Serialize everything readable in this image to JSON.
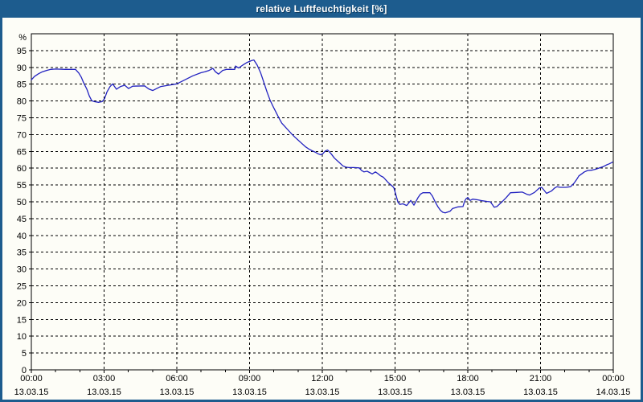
{
  "window": {
    "title": "relative Luftfeuchtigkeit [%]",
    "title_bar_color": "#1d5c8e",
    "frame_color": "#1d5c8e",
    "content_background": "#fdfdf7"
  },
  "chart_data": {
    "type": "line",
    "title": "relative Luftfeuchtigkeit [%]",
    "ylabel": "%",
    "unit_label": "%",
    "ylim": [
      0,
      100
    ],
    "ytick_step": 5,
    "yticks": [
      0,
      5,
      10,
      15,
      20,
      25,
      30,
      35,
      40,
      45,
      50,
      55,
      60,
      65,
      70,
      75,
      80,
      85,
      90,
      95
    ],
    "xlim_hours": [
      0,
      24
    ],
    "minor_tick_every_hours": 1,
    "grid": "dashed",
    "legend": "none",
    "colors": {
      "line": "#2222c0",
      "grid": "#000000",
      "axis": "#000000",
      "text": "#000000"
    },
    "xticks": [
      {
        "hours": 0,
        "time": "00:00",
        "date": "13.03.15"
      },
      {
        "hours": 3,
        "time": "03:00",
        "date": "13.03.15"
      },
      {
        "hours": 6,
        "time": "06:00",
        "date": "13.03.15"
      },
      {
        "hours": 9,
        "time": "09:00",
        "date": "13.03.15"
      },
      {
        "hours": 12,
        "time": "12:00",
        "date": "13.03.15"
      },
      {
        "hours": 15,
        "time": "15:00",
        "date": "13.03.15"
      },
      {
        "hours": 18,
        "time": "18:00",
        "date": "13.03.15"
      },
      {
        "hours": 21,
        "time": "21:00",
        "date": "13.03.15"
      },
      {
        "hours": 24,
        "time": "00:00",
        "date": "14.03.15"
      }
    ],
    "points": [
      [
        0.0,
        86.3
      ],
      [
        0.13,
        87.3
      ],
      [
        0.3,
        88.1
      ],
      [
        0.46,
        88.7
      ],
      [
        0.63,
        89.1
      ],
      [
        0.8,
        89.4
      ],
      [
        1.0,
        89.5
      ],
      [
        1.4,
        89.4
      ],
      [
        1.82,
        89.4
      ],
      [
        1.96,
        88.3
      ],
      [
        2.06,
        87.1
      ],
      [
        2.15,
        85.5
      ],
      [
        2.29,
        83.5
      ],
      [
        2.39,
        81.5
      ],
      [
        2.49,
        80.1
      ],
      [
        2.59,
        79.8
      ],
      [
        2.78,
        79.6
      ],
      [
        2.92,
        79.8
      ],
      [
        3.02,
        80.7
      ],
      [
        3.12,
        82.7
      ],
      [
        3.25,
        84.3
      ],
      [
        3.35,
        85.1
      ],
      [
        3.51,
        83.5
      ],
      [
        3.68,
        84.3
      ],
      [
        3.85,
        84.7
      ],
      [
        4.01,
        83.7
      ],
      [
        4.18,
        84.4
      ],
      [
        4.67,
        84.5
      ],
      [
        4.84,
        83.6
      ],
      [
        5.01,
        83.1
      ],
      [
        5.17,
        83.7
      ],
      [
        5.34,
        84.3
      ],
      [
        5.67,
        84.7
      ],
      [
        6.0,
        85.1
      ],
      [
        6.33,
        86.3
      ],
      [
        6.66,
        87.5
      ],
      [
        6.99,
        88.4
      ],
      [
        7.16,
        88.7
      ],
      [
        7.33,
        89.1
      ],
      [
        7.49,
        89.7
      ],
      [
        7.59,
        88.7
      ],
      [
        7.72,
        88.0
      ],
      [
        7.89,
        89.1
      ],
      [
        8.06,
        89.4
      ],
      [
        8.39,
        89.4
      ],
      [
        8.42,
        90.4
      ],
      [
        8.55,
        89.8
      ],
      [
        8.72,
        90.7
      ],
      [
        8.88,
        91.4
      ],
      [
        9.08,
        92.0
      ],
      [
        9.18,
        92.2
      ],
      [
        9.31,
        90.7
      ],
      [
        9.45,
        88.5
      ],
      [
        9.6,
        85.3
      ],
      [
        9.72,
        82.7
      ],
      [
        9.85,
        80.2
      ],
      [
        9.98,
        78.2
      ],
      [
        10.1,
        76.5
      ],
      [
        10.22,
        74.8
      ],
      [
        10.33,
        73.4
      ],
      [
        10.46,
        72.4
      ],
      [
        10.58,
        71.4
      ],
      [
        10.72,
        70.3
      ],
      [
        10.86,
        69.3
      ],
      [
        11.0,
        68.4
      ],
      [
        11.15,
        67.4
      ],
      [
        11.3,
        66.4
      ],
      [
        11.45,
        65.7
      ],
      [
        11.58,
        65.2
      ],
      [
        11.7,
        64.8
      ],
      [
        11.82,
        64.3
      ],
      [
        11.93,
        64.0
      ],
      [
        12.02,
        64.3
      ],
      [
        12.12,
        65.1
      ],
      [
        12.22,
        65.4
      ],
      [
        12.35,
        64.4
      ],
      [
        12.5,
        63.0
      ],
      [
        12.7,
        61.7
      ],
      [
        12.85,
        60.7
      ],
      [
        12.97,
        60.3
      ],
      [
        13.1,
        60.2
      ],
      [
        13.3,
        60.2
      ],
      [
        13.52,
        60.1
      ],
      [
        13.62,
        59.3
      ],
      [
        13.72,
        58.9
      ],
      [
        13.85,
        59.1
      ],
      [
        14.06,
        58.3
      ],
      [
        14.19,
        58.9
      ],
      [
        14.29,
        58.4
      ],
      [
        14.39,
        57.8
      ],
      [
        14.52,
        57.3
      ],
      [
        14.62,
        56.5
      ],
      [
        14.72,
        55.7
      ],
      [
        14.85,
        54.9
      ],
      [
        14.95,
        54.2
      ],
      [
        15.05,
        51.7
      ],
      [
        15.12,
        49.9
      ],
      [
        15.2,
        49.2
      ],
      [
        15.32,
        49.4
      ],
      [
        15.48,
        48.9
      ],
      [
        15.65,
        50.4
      ],
      [
        15.78,
        49.0
      ],
      [
        15.95,
        51.3
      ],
      [
        16.05,
        52.3
      ],
      [
        16.15,
        52.7
      ],
      [
        16.44,
        52.7
      ],
      [
        16.54,
        51.7
      ],
      [
        16.64,
        50.2
      ],
      [
        16.77,
        48.5
      ],
      [
        16.87,
        47.5
      ],
      [
        16.97,
        46.9
      ],
      [
        17.07,
        46.7
      ],
      [
        17.27,
        47.2
      ],
      [
        17.37,
        48.0
      ],
      [
        17.47,
        48.2
      ],
      [
        17.6,
        48.5
      ],
      [
        17.8,
        48.6
      ],
      [
        17.87,
        50.2
      ],
      [
        17.93,
        50.9
      ],
      [
        18.0,
        51.3
      ],
      [
        18.1,
        50.4
      ],
      [
        18.2,
        50.8
      ],
      [
        18.4,
        50.6
      ],
      [
        18.6,
        50.3
      ],
      [
        18.8,
        50.1
      ],
      [
        18.93,
        50.0
      ],
      [
        19.09,
        48.4
      ],
      [
        19.2,
        48.6
      ],
      [
        19.4,
        49.9
      ],
      [
        19.59,
        51.3
      ],
      [
        19.76,
        52.7
      ],
      [
        20.02,
        52.8
      ],
      [
        20.25,
        52.9
      ],
      [
        20.45,
        52.2
      ],
      [
        20.55,
        52.0
      ],
      [
        20.75,
        52.8
      ],
      [
        20.95,
        54.1
      ],
      [
        21.05,
        54.3
      ],
      [
        21.25,
        52.5
      ],
      [
        21.45,
        53.2
      ],
      [
        21.58,
        54.1
      ],
      [
        21.68,
        54.5
      ],
      [
        21.81,
        54.3
      ],
      [
        22.04,
        54.3
      ],
      [
        22.24,
        54.5
      ],
      [
        22.38,
        55.5
      ],
      [
        22.48,
        56.5
      ],
      [
        22.58,
        57.7
      ],
      [
        22.81,
        58.9
      ],
      [
        22.94,
        59.3
      ],
      [
        23.1,
        59.4
      ],
      [
        23.27,
        59.7
      ],
      [
        23.44,
        60.1
      ],
      [
        23.6,
        60.5
      ],
      [
        23.73,
        61.0
      ],
      [
        23.83,
        61.3
      ],
      [
        23.97,
        61.8
      ]
    ]
  }
}
